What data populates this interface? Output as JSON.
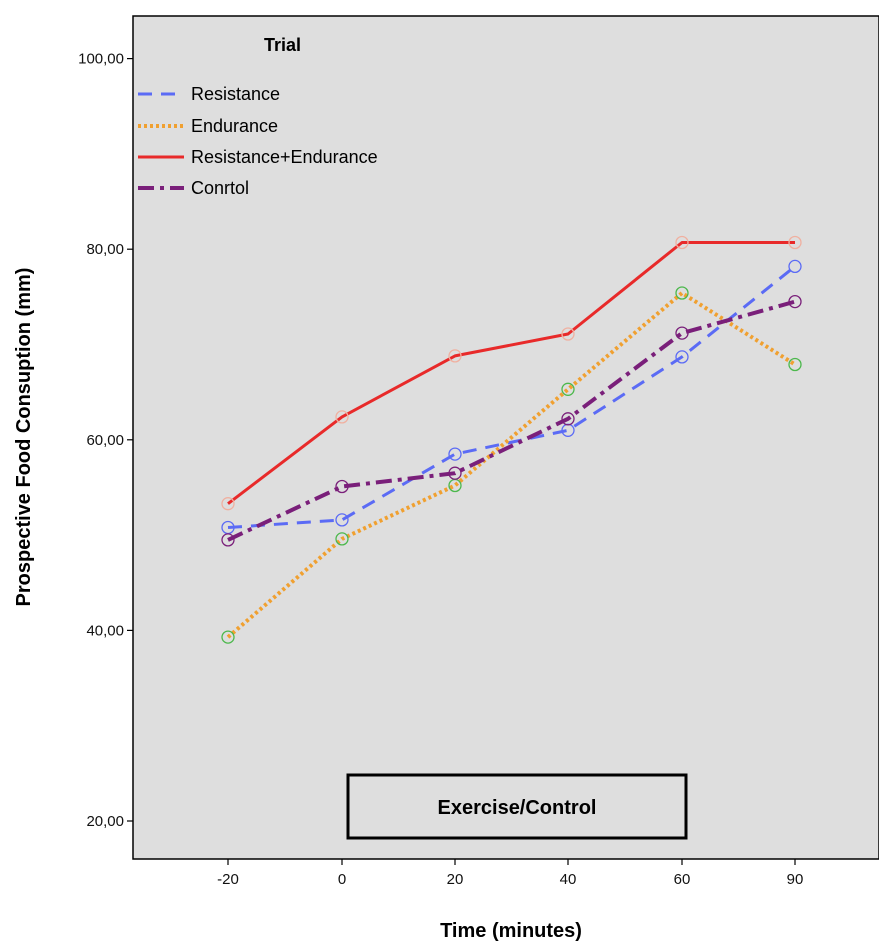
{
  "chart_data": {
    "type": "line",
    "categories": [
      "-20",
      "0",
      "20",
      "40",
      "60",
      "90"
    ],
    "ylabel": "Prospective Food Consuption (mm)",
    "xlabel": "Time (minutes)",
    "ylim": [
      15,
      105
    ],
    "yticks": [
      "20,00",
      "40,00",
      "60,00",
      "80,00",
      "100,00"
    ],
    "ytick_values": [
      20,
      40,
      60,
      80,
      100
    ],
    "grid": false,
    "legend": {
      "title": "Trial",
      "position": "top-left"
    },
    "annotation": "Exercise/Control",
    "series": [
      {
        "name": "Resistance",
        "values": [
          50.8,
          51.6,
          58.5,
          61.0,
          68.7,
          78.2
        ],
        "color": "#5B6BF5",
        "dash": "dashed",
        "marker_color": "#5B6BF5"
      },
      {
        "name": "Endurance",
        "values": [
          39.3,
          49.6,
          55.2,
          65.3,
          75.4,
          67.9
        ],
        "color": "#F0A030",
        "dash": "dotted",
        "marker_color": "#4CB84C"
      },
      {
        "name": "Resistance+Endurance",
        "values": [
          53.3,
          62.4,
          68.8,
          71.1,
          80.7,
          80.7
        ],
        "color": "#E82A2A",
        "dash": "solid",
        "marker_color": "#F0B0A0"
      },
      {
        "name": "Conrtol",
        "values": [
          49.5,
          55.1,
          56.5,
          62.2,
          71.2,
          74.5
        ],
        "color": "#7A1F7A",
        "dash": "dashdot",
        "marker_color": "#7A1F7A"
      }
    ]
  }
}
